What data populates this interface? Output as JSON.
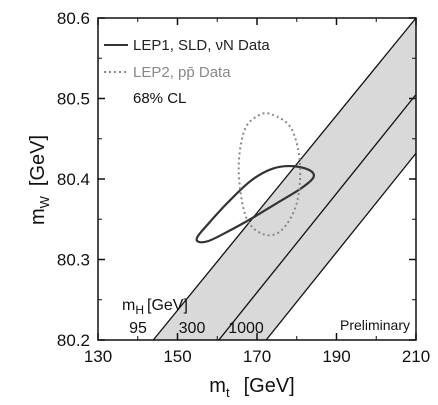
{
  "chart_data": {
    "type": "contour",
    "xlabel": "m",
    "xlabel_sub": "t",
    "xlabel_unit": "[GeV]",
    "ylabel": "m",
    "ylabel_sub": "W",
    "ylabel_unit": "[GeV]",
    "xlim": [
      130,
      210
    ],
    "ylim": [
      80.2,
      80.6
    ],
    "x_ticks": [
      130,
      150,
      170,
      190,
      210
    ],
    "x_tick_labels": [
      "130",
      "150",
      "170",
      "190",
      "210"
    ],
    "y_ticks": [
      80.2,
      80.3,
      80.4,
      80.5,
      80.6
    ],
    "y_tick_labels": [
      "80.2",
      "80.3",
      "80.4",
      "80.5",
      "80.6"
    ],
    "grid": false,
    "legend": {
      "placement": "top-left",
      "entries": [
        {
          "label": "LEP1, SLD, νN Data",
          "style": "solid",
          "color": "#333333"
        },
        {
          "label": "LEP2, pp̄ Data",
          "style": "dotted",
          "color": "#888888"
        }
      ],
      "cl_label": "68% CL"
    },
    "contours": [
      {
        "name": "LEP1, SLD, νN Data",
        "style": "solid",
        "color": "#333333",
        "points": [
          [
            155.3,
            80.322
          ],
          [
            157.8,
            80.323
          ],
          [
            162,
            80.333
          ],
          [
            168.3,
            80.35
          ],
          [
            175,
            80.37
          ],
          [
            181,
            80.388
          ],
          [
            184.2,
            80.402
          ],
          [
            183.2,
            80.411
          ],
          [
            179,
            80.416
          ],
          [
            174,
            80.413
          ],
          [
            168.5,
            80.398
          ],
          [
            162.5,
            80.37
          ],
          [
            157.5,
            80.343
          ],
          [
            155,
            80.328
          ]
        ]
      },
      {
        "name": "LEP2, pp̄ Data",
        "style": "dotted",
        "color": "#888888",
        "points": [
          [
            173.8,
            80.48
          ],
          [
            178.6,
            80.463
          ],
          [
            180.8,
            80.42
          ],
          [
            180,
            80.37
          ],
          [
            176.3,
            80.337
          ],
          [
            171.8,
            80.331
          ],
          [
            167.3,
            80.352
          ],
          [
            165.4,
            80.41
          ],
          [
            166.8,
            80.46
          ],
          [
            170.4,
            80.479
          ]
        ]
      }
    ],
    "band": {
      "title": "m",
      "title_sub": "H",
      "title_unit": "[GeV]",
      "fill": "#d9d9d9",
      "lines": [
        {
          "label": "95",
          "points": [
            [
              143.9,
              80.2
            ],
            [
              210,
              80.6
            ]
          ]
        },
        {
          "label": "300",
          "points": [
            [
              160.4,
              80.2
            ],
            [
              210,
              80.505
            ]
          ]
        },
        {
          "label": "1000",
          "points": [
            [
              172.3,
              80.2
            ],
            [
              210,
              80.432
            ]
          ]
        }
      ]
    },
    "annotation": "Preliminary"
  }
}
